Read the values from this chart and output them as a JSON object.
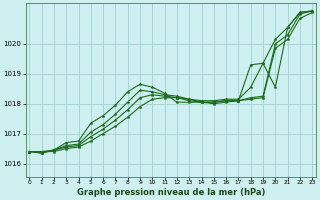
{
  "xlabel": "Graphe pression niveau de la mer (hPa)",
  "bg_color": "#cff0f0",
  "grid_color": "#99cccc",
  "line_color": "#1a6b1a",
  "xlim": [
    -0.3,
    23.3
  ],
  "ylim": [
    1015.55,
    1021.35
  ],
  "yticks": [
    1016,
    1017,
    1018,
    1019,
    1020
  ],
  "xticks": [
    0,
    1,
    2,
    3,
    4,
    5,
    6,
    7,
    8,
    9,
    10,
    11,
    12,
    13,
    14,
    15,
    16,
    17,
    18,
    19,
    20,
    21,
    22,
    23
  ],
  "line1": [
    1016.4,
    1016.4,
    1016.4,
    1016.5,
    1016.55,
    1016.75,
    1017.0,
    1017.25,
    1017.55,
    1017.9,
    1018.15,
    1018.2,
    1018.2,
    1018.15,
    1018.05,
    1018.05,
    1018.1,
    1018.1,
    1018.15,
    1018.2,
    1019.85,
    1020.15,
    1020.85,
    1021.05
  ],
  "line2": [
    1016.4,
    1016.4,
    1016.45,
    1016.55,
    1016.6,
    1016.9,
    1017.15,
    1017.45,
    1017.8,
    1018.2,
    1018.3,
    1018.25,
    1018.2,
    1018.1,
    1018.05,
    1018.05,
    1018.1,
    1018.1,
    1018.2,
    1018.25,
    1020.0,
    1020.3,
    1021.0,
    1021.1
  ],
  "line3": [
    1016.4,
    1016.35,
    1016.45,
    1016.6,
    1016.65,
    1017.05,
    1017.3,
    1017.65,
    1018.05,
    1018.45,
    1018.4,
    1018.3,
    1018.25,
    1018.15,
    1018.1,
    1018.1,
    1018.15,
    1018.15,
    1018.55,
    1019.35,
    1020.15,
    1020.55,
    1021.05,
    1021.1
  ],
  "line4": [
    1016.4,
    1016.35,
    1016.45,
    1016.7,
    1016.75,
    1017.35,
    1017.6,
    1017.95,
    1018.4,
    1018.65,
    1018.55,
    1018.35,
    1018.05,
    1018.05,
    1018.05,
    1018.0,
    1018.05,
    1018.1,
    1019.3,
    1019.35,
    1018.55,
    1020.55,
    1021.05,
    1021.1
  ]
}
